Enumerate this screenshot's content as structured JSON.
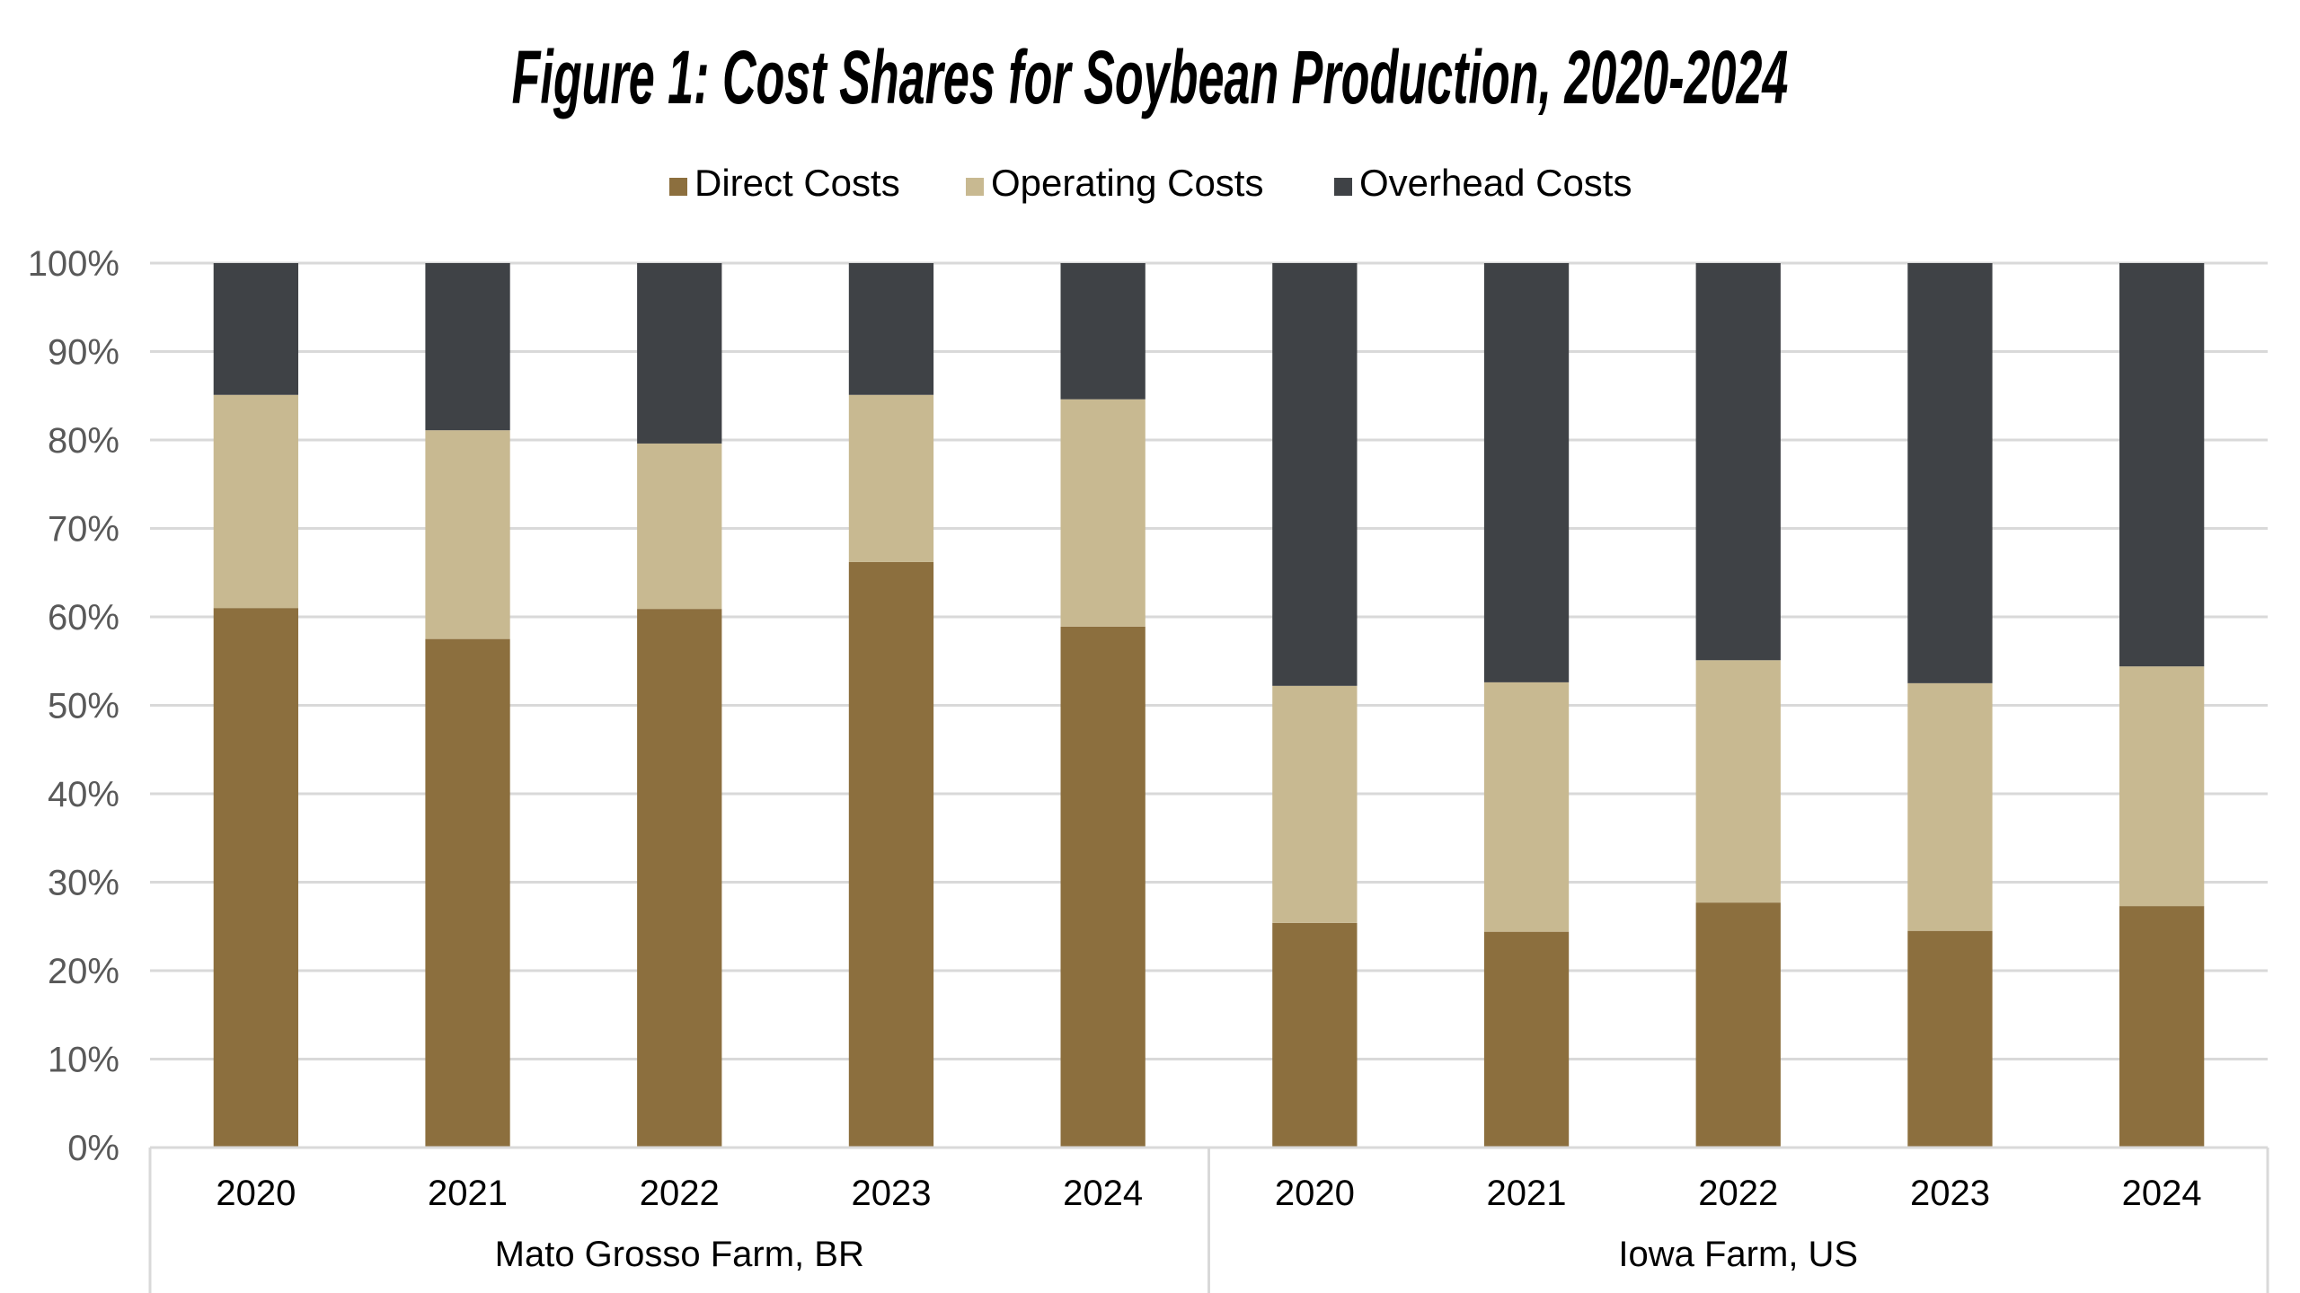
{
  "chart_data": {
    "type": "bar",
    "stacked": true,
    "title": "Figure 1: Cost Shares for Soybean Production, 2020-2024",
    "xlabel": "",
    "ylabel": "",
    "ylim": [
      0,
      100
    ],
    "yticks": [
      "0%",
      "10%",
      "20%",
      "30%",
      "40%",
      "50%",
      "60%",
      "70%",
      "80%",
      "90%",
      "100%"
    ],
    "grid": true,
    "legend_position": "top-center",
    "groups": [
      {
        "label": "Mato Grosso Farm, BR",
        "categories": [
          "2020",
          "2021",
          "2022",
          "2023",
          "2024"
        ]
      },
      {
        "label": "Iowa Farm, US",
        "categories": [
          "2020",
          "2021",
          "2022",
          "2023",
          "2024"
        ]
      }
    ],
    "categories": [
      "2020",
      "2021",
      "2022",
      "2023",
      "2024",
      "2020",
      "2021",
      "2022",
      "2023",
      "2024"
    ],
    "series": [
      {
        "name": "Direct Costs",
        "color": "#8C6F3E",
        "values": [
          61.0,
          57.5,
          60.9,
          66.2,
          58.9,
          25.4,
          24.4,
          27.7,
          24.5,
          27.3
        ]
      },
      {
        "name": "Operating Costs",
        "color": "#C8B991",
        "values": [
          24.1,
          23.6,
          18.7,
          18.9,
          25.7,
          26.8,
          28.2,
          27.4,
          28.0,
          27.1
        ]
      },
      {
        "name": "Overhead Costs",
        "color": "#3F4246",
        "values": [
          14.9,
          18.9,
          20.4,
          14.9,
          15.4,
          47.8,
          47.4,
          44.9,
          47.5,
          45.6
        ]
      }
    ]
  }
}
